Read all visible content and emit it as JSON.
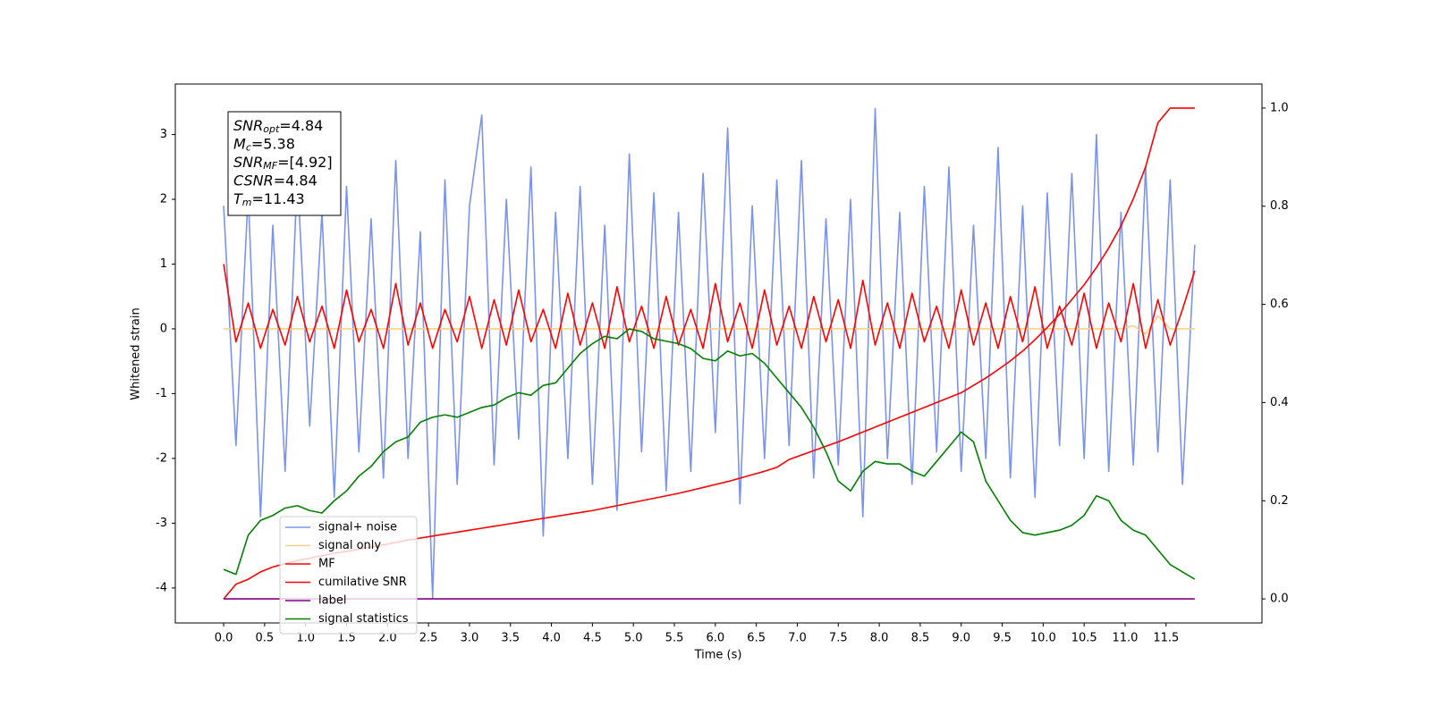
{
  "chart_data": {
    "type": "line",
    "xlabel": "Time (s)",
    "ylabel": "Whitened strain",
    "xlim": [
      -0.59,
      12.67
    ],
    "ylim": [
      -4.54,
      3.78
    ],
    "y2lim": [
      -0.049,
      1.049
    ],
    "xticks": [
      {
        "value": 0,
        "label": "0.0"
      },
      {
        "value": 0.5,
        "label": "0.5"
      },
      {
        "value": 1,
        "label": "1.0"
      },
      {
        "value": 1.5,
        "label": "1.5"
      },
      {
        "value": 2,
        "label": "2.0"
      },
      {
        "value": 2.5,
        "label": "2.5"
      },
      {
        "value": 3,
        "label": "3.0"
      },
      {
        "value": 3.5,
        "label": "3.5"
      },
      {
        "value": 4,
        "label": "4.0"
      },
      {
        "value": 4.5,
        "label": "4.5"
      },
      {
        "value": 5,
        "label": "5.0"
      },
      {
        "value": 5.5,
        "label": "5.5"
      },
      {
        "value": 6,
        "label": "6.0"
      },
      {
        "value": 6.5,
        "label": "6.5"
      },
      {
        "value": 7,
        "label": "7.0"
      },
      {
        "value": 7.5,
        "label": "7.5"
      },
      {
        "value": 8,
        "label": "8.0"
      },
      {
        "value": 8.5,
        "label": "8.5"
      },
      {
        "value": 9,
        "label": "9.0"
      },
      {
        "value": 9.5,
        "label": "9.5"
      },
      {
        "value": 10,
        "label": "10.0"
      },
      {
        "value": 10.5,
        "label": "10.5"
      },
      {
        "value": 11,
        "label": "11.0"
      },
      {
        "value": 11.5,
        "label": "11.5"
      }
    ],
    "yticks": [
      -4,
      -3,
      -2,
      -1,
      0,
      1,
      2,
      3
    ],
    "y2ticks": [
      {
        "value": 0,
        "label": "0.0"
      },
      {
        "value": 0.2,
        "label": "0.2"
      },
      {
        "value": 0.4,
        "label": "0.4"
      },
      {
        "value": 0.6,
        "label": "0.6"
      },
      {
        "value": 0.8,
        "label": "0.8"
      },
      {
        "value": 1,
        "label": "1.0"
      }
    ],
    "legend": "lower left",
    "annotation": [
      {
        "name": "SNR",
        "sub": "opt",
        "text": "=4.84"
      },
      {
        "name": "M",
        "sub": "c",
        "text": "=5.38"
      },
      {
        "name": "SNR",
        "sub": "MF",
        "text": "=[4.92]"
      },
      {
        "name": "CSNR",
        "text": "=4.84"
      },
      {
        "name": "T",
        "sub": "m",
        "text": "=11.43"
      }
    ],
    "x": [
      0,
      0.15,
      0.3,
      0.45,
      0.6,
      0.75,
      0.9,
      1.05,
      1.2,
      1.35,
      1.5,
      1.65,
      1.8,
      1.95,
      2.1,
      2.25,
      2.4,
      2.55,
      2.7,
      2.85,
      3,
      3.15,
      3.3,
      3.45,
      3.6,
      3.75,
      3.9,
      4.05,
      4.2,
      4.35,
      4.5,
      4.65,
      4.8,
      4.95,
      5.1,
      5.25,
      5.4,
      5.55,
      5.7,
      5.85,
      6,
      6.15,
      6.3,
      6.45,
      6.6,
      6.75,
      6.9,
      7.05,
      7.2,
      7.35,
      7.5,
      7.65,
      7.8,
      7.95,
      8.1,
      8.25,
      8.4,
      8.55,
      8.7,
      8.85,
      9,
      9.15,
      9.3,
      9.45,
      9.6,
      9.75,
      9.9,
      10.05,
      10.2,
      10.35,
      10.5,
      10.65,
      10.8,
      10.95,
      11.1,
      11.25,
      11.4,
      11.55,
      11.7,
      11.85
    ],
    "series": [
      {
        "name": "signal+ noise",
        "color": "#7b93e8",
        "values": [
          1.9,
          -1.8,
          2.1,
          -2.9,
          1.6,
          -2.2,
          2.4,
          -1.5,
          1.8,
          -2.6,
          2.2,
          -1.9,
          1.7,
          -2.3,
          2.6,
          -2.0,
          1.5,
          -4.15,
          2.3,
          -2.4,
          1.9,
          3.3,
          -2.1,
          2.0,
          -1.7,
          2.5,
          -3.2,
          1.8,
          -2.0,
          2.2,
          -2.4,
          1.6,
          -2.8,
          2.7,
          -1.9,
          2.1,
          -2.5,
          1.8,
          -2.2,
          2.4,
          -1.6,
          3.1,
          -2.7,
          1.9,
          -2.0,
          2.3,
          -1.8,
          2.6,
          -2.3,
          1.7,
          -2.1,
          2.0,
          -2.9,
          3.4,
          -2.0,
          1.8,
          -2.4,
          2.2,
          -1.9,
          2.5,
          -2.2,
          1.6,
          -2.0,
          2.8,
          -2.3,
          1.9,
          -2.6,
          2.1,
          -1.8,
          2.4,
          -2.0,
          3.0,
          -2.2,
          1.8,
          -2.1,
          2.5,
          -1.9,
          2.3,
          -2.4,
          1.3
        ]
      },
      {
        "name": "signal only",
        "color": "#f7d08a",
        "values": [
          0,
          0,
          0,
          0,
          0,
          0,
          0,
          0,
          0,
          0,
          0,
          0,
          0,
          0,
          0,
          0,
          0,
          0,
          0,
          0,
          0,
          0,
          0,
          0,
          0,
          0,
          0,
          0,
          0,
          0,
          0,
          0,
          0,
          0,
          0,
          0,
          0,
          0,
          0,
          0,
          0,
          0,
          0,
          0,
          0,
          0,
          0,
          0,
          0,
          0,
          0,
          0,
          0,
          0,
          0,
          0,
          0,
          0,
          0,
          0,
          0,
          0,
          0,
          0,
          0,
          0,
          0,
          0,
          0,
          0,
          0,
          0,
          0,
          0,
          0.05,
          -0.08,
          0.2,
          0,
          0,
          0
        ]
      },
      {
        "name": "MF",
        "color": "#ff0000",
        "values": [
          1.0,
          -0.2,
          0.4,
          -0.3,
          0.3,
          -0.25,
          0.5,
          -0.2,
          0.35,
          -0.3,
          0.6,
          -0.2,
          0.3,
          -0.3,
          0.7,
          -0.25,
          0.4,
          -0.3,
          0.3,
          -0.2,
          0.5,
          -0.3,
          0.45,
          -0.25,
          0.6,
          -0.2,
          0.3,
          -0.3,
          0.55,
          -0.25,
          0.4,
          -0.3,
          0.65,
          -0.2,
          0.35,
          -0.3,
          0.5,
          -0.25,
          0.3,
          -0.3,
          0.7,
          -0.2,
          0.4,
          -0.3,
          0.6,
          -0.25,
          0.35,
          -0.3,
          0.5,
          -0.2,
          0.45,
          -0.3,
          0.75,
          -0.25,
          0.4,
          -0.3,
          0.55,
          -0.2,
          0.35,
          -0.3,
          0.6,
          -0.25,
          0.4,
          -0.3,
          0.5,
          -0.2,
          0.65,
          -0.3,
          0.35,
          -0.25,
          0.55,
          -0.3,
          0.4,
          -0.2,
          0.7,
          -0.3,
          0.45,
          -0.25,
          0.3,
          0.9
        ]
      },
      {
        "name": "cumilative SNR",
        "color": "#ff0000",
        "axis": "y2",
        "values": [
          0,
          0.03,
          0.04,
          0.055,
          0.065,
          0.072,
          0.078,
          0.083,
          0.088,
          0.093,
          0.097,
          0.101,
          0.106,
          0.11,
          0.115,
          0.12,
          0.124,
          0.128,
          0.132,
          0.136,
          0.14,
          0.144,
          0.148,
          0.152,
          0.156,
          0.16,
          0.164,
          0.168,
          0.172,
          0.176,
          0.18,
          0.185,
          0.19,
          0.195,
          0.2,
          0.205,
          0.21,
          0.215,
          0.221,
          0.227,
          0.233,
          0.239,
          0.246,
          0.253,
          0.26,
          0.268,
          0.284,
          0.293,
          0.302,
          0.311,
          0.32,
          0.33,
          0.34,
          0.35,
          0.36,
          0.37,
          0.38,
          0.39,
          0.4,
          0.41,
          0.42,
          0.435,
          0.45,
          0.467,
          0.485,
          0.505,
          0.528,
          0.553,
          0.58,
          0.61,
          0.64,
          0.675,
          0.715,
          0.76,
          0.815,
          0.88,
          0.97,
          1.0,
          1.0,
          1.0
        ]
      },
      {
        "name": "label",
        "color": "#800080",
        "axis": "y2",
        "values": [
          0,
          0,
          0,
          0,
          0,
          0,
          0,
          0,
          0,
          0,
          0,
          0,
          0,
          0,
          0,
          0,
          0,
          0,
          0,
          0,
          0,
          0,
          0,
          0,
          0,
          0,
          0,
          0,
          0,
          0,
          0,
          0,
          0,
          0,
          0,
          0,
          0,
          0,
          0,
          0,
          0,
          0,
          0,
          0,
          0,
          0,
          0,
          0,
          0,
          0,
          0,
          0,
          0,
          0,
          0,
          0,
          0,
          0,
          0,
          0,
          0,
          0,
          0,
          0,
          0,
          0,
          0,
          0,
          0,
          0,
          0,
          0,
          0,
          0,
          0,
          0,
          0,
          0,
          0,
          0
        ]
      },
      {
        "name": "signal statistics",
        "color": "#008000",
        "axis": "y2",
        "values": [
          0.06,
          0.05,
          0.13,
          0.16,
          0.17,
          0.185,
          0.19,
          0.18,
          0.175,
          0.2,
          0.22,
          0.25,
          0.27,
          0.3,
          0.32,
          0.33,
          0.36,
          0.37,
          0.375,
          0.37,
          0.38,
          0.39,
          0.395,
          0.41,
          0.42,
          0.415,
          0.435,
          0.44,
          0.47,
          0.5,
          0.52,
          0.535,
          0.53,
          0.55,
          0.545,
          0.53,
          0.525,
          0.52,
          0.51,
          0.49,
          0.485,
          0.505,
          0.495,
          0.5,
          0.48,
          0.45,
          0.42,
          0.39,
          0.35,
          0.3,
          0.24,
          0.22,
          0.26,
          0.28,
          0.275,
          0.275,
          0.26,
          0.25,
          0.28,
          0.31,
          0.34,
          0.32,
          0.24,
          0.2,
          0.16,
          0.135,
          0.13,
          0.135,
          0.14,
          0.15,
          0.17,
          0.21,
          0.2,
          0.16,
          0.14,
          0.13,
          0.1,
          0.07,
          0.055,
          0.04
        ]
      }
    ]
  }
}
